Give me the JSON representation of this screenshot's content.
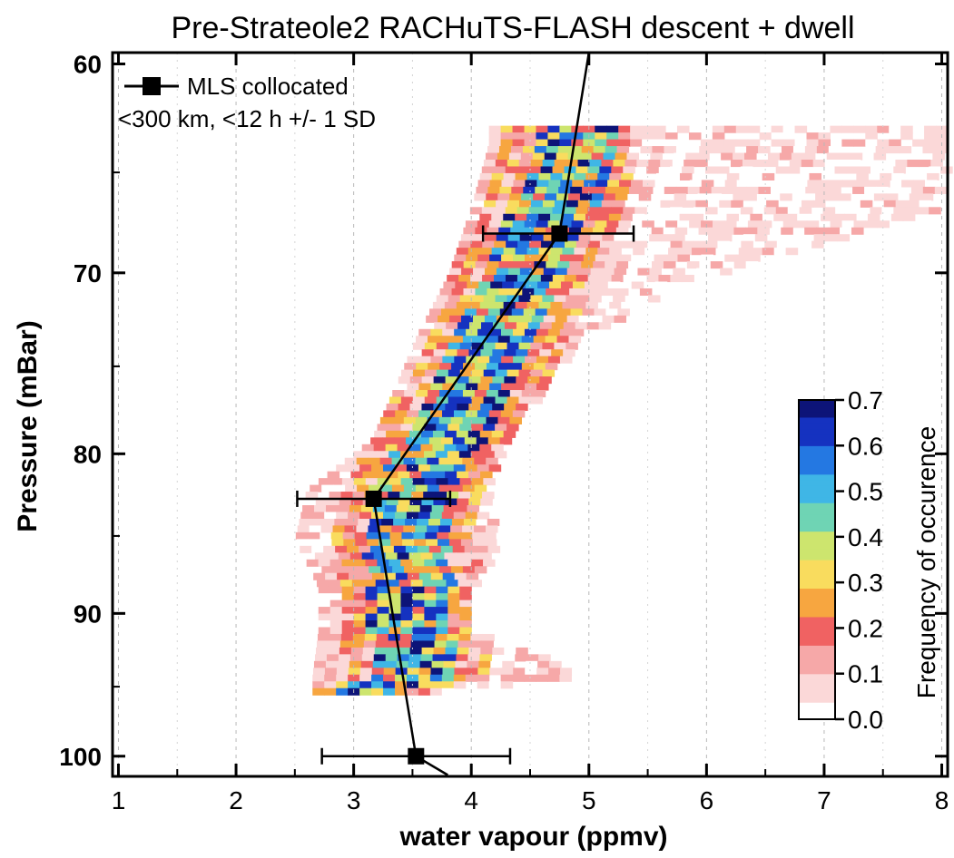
{
  "chart_data": {
    "type": "heatmap",
    "title": "Pre-Strateole2 RACHuTS-FLASH descent + dwell",
    "xlabel": "water vapour (ppmv)",
    "ylabel": "Pressure (mBar)",
    "xlim": [
      0.95,
      8.05
    ],
    "ylim": [
      101.5,
      59.5
    ],
    "y_scale": "log (pressure increasing downward)",
    "grid": "vertical dashed at x ticks",
    "x_ticks": [
      "1",
      "2",
      "3",
      "4",
      "5",
      "6",
      "7",
      "8"
    ],
    "y_ticks": [
      "60",
      "70",
      "80",
      "90",
      "100"
    ],
    "colorbar": {
      "label": "Frequency of occurence",
      "range": [
        0.0,
        0.7
      ],
      "ticks": [
        "0.0",
        "0.1",
        "0.2",
        "0.3",
        "0.4",
        "0.5",
        "0.6",
        "0.7"
      ],
      "colors": [
        "#ffffff",
        "#fbd8d8",
        "#f6a8a8",
        "#f06262",
        "#f7a640",
        "#f9dc5e",
        "#cde56e",
        "#6fd4b4",
        "#3fb6e6",
        "#2478e2",
        "#1532c0",
        "#0d1478"
      ]
    },
    "heatmap_description": "2D histogram of water vapour versus pressure; dense core follows the MLS line, sparse low-frequency cells extend to about 8 ppmv near 63-67 mBar.",
    "heatmap_envelope": [
      {
        "p": 63.5,
        "xmin": 4.15,
        "xmax": 8.0,
        "core": 4.8
      },
      {
        "p": 66.5,
        "xmin": 4.0,
        "xmax": 8.0,
        "core": 4.65
      },
      {
        "p": 70.0,
        "xmin": 3.8,
        "xmax": 6.0,
        "core": 4.35
      },
      {
        "p": 73.0,
        "xmin": 3.55,
        "xmax": 4.95,
        "core": 4.2
      },
      {
        "p": 76.0,
        "xmin": 3.35,
        "xmax": 4.6,
        "core": 3.95
      },
      {
        "p": 79.0,
        "xmin": 3.15,
        "xmax": 4.25,
        "core": 3.72
      },
      {
        "p": 82.0,
        "xmin": 2.6,
        "xmax": 4.1,
        "core": 3.45
      },
      {
        "p": 85.0,
        "xmin": 2.5,
        "xmax": 4.2,
        "core": 3.4
      },
      {
        "p": 88.0,
        "xmin": 2.7,
        "xmax": 4.0,
        "core": 3.45
      },
      {
        "p": 91.0,
        "xmin": 2.7,
        "xmax": 4.0,
        "core": 3.45
      },
      {
        "p": 94.0,
        "xmin": 2.65,
        "xmax": 5.0,
        "core": 3.5
      },
      {
        "p": 95.5,
        "xmin": 2.65,
        "xmax": 3.3,
        "core": 2.8
      }
    ],
    "series": [
      {
        "name": "MLS collocated",
        "note": "<300 km, <12 h +/- 1 SD",
        "type": "line-with-markers",
        "points": [
          {
            "x": 4.75,
            "y": 68.0,
            "xerr_low": 4.1,
            "xerr_high": 5.38
          },
          {
            "x": 3.17,
            "y": 82.7,
            "xerr_low": 2.52,
            "xerr_high": 3.82
          },
          {
            "x": 3.53,
            "y": 100.0,
            "xerr_low": 2.73,
            "xerr_high": 4.33
          }
        ],
        "line_extension_top": {
          "x": 5.0,
          "y": 59.5
        },
        "line_extension_bottom": {
          "x": 3.8,
          "y": 101.4
        }
      }
    ]
  },
  "legend": {
    "line1": "MLS collocated",
    "line2": "<300 km, <12 h +/- 1 SD"
  }
}
